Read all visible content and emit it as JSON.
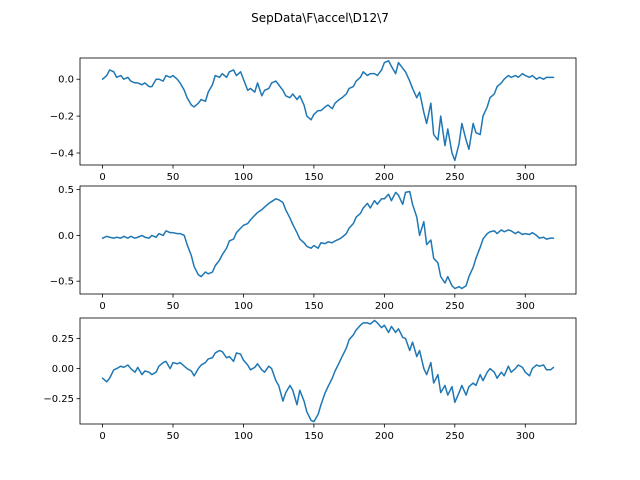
{
  "figure": {
    "title": "SepData\\F\\accel\\D12\\7"
  },
  "chart_data": [
    {
      "type": "line",
      "title": "",
      "xlabel": "",
      "ylabel": "",
      "xlim": [
        -16,
        336
      ],
      "ylim": [
        -0.465,
        0.115
      ],
      "xticks": [
        0,
        50,
        100,
        150,
        200,
        250,
        300
      ],
      "yticks": [
        -0.4,
        -0.2,
        0.0
      ],
      "ytick_labels": [
        "−0.4",
        "−0.2",
        "0.0"
      ],
      "grid": false,
      "color": "#1f77b4",
      "series": [
        {
          "x": [
            0,
            3,
            5,
            8,
            10,
            13,
            15,
            18,
            20,
            23,
            25,
            28,
            30,
            33,
            35,
            38,
            40,
            43,
            45,
            48,
            50,
            53,
            55,
            58,
            60,
            63,
            65,
            68,
            70,
            73,
            75,
            78,
            80,
            83,
            85,
            88,
            90,
            93,
            95,
            98,
            100,
            103,
            105,
            108,
            110,
            113,
            115,
            118,
            120,
            123,
            125,
            128,
            130,
            133,
            135,
            138,
            140,
            143,
            145,
            148,
            150,
            153,
            155,
            158,
            160,
            163,
            165,
            168,
            170,
            173,
            175,
            178,
            180,
            183,
            185,
            188,
            190,
            193,
            195,
            198,
            200,
            203,
            205,
            208,
            210,
            213,
            215,
            218,
            220,
            223,
            225,
            228,
            230,
            233,
            235,
            238,
            240,
            243,
            245,
            248,
            250,
            253,
            255,
            258,
            260,
            263,
            265,
            268,
            270,
            273,
            275,
            278,
            280,
            283,
            285,
            288,
            290,
            293,
            295,
            298,
            300,
            303,
            305,
            308,
            310,
            313,
            315,
            318,
            320
          ],
          "y": [
            0.0,
            0.02,
            0.05,
            0.04,
            0.01,
            0.02,
            0.0,
            0.01,
            -0.01,
            -0.02,
            -0.02,
            -0.03,
            -0.02,
            -0.04,
            -0.04,
            0.0,
            0.0,
            -0.01,
            0.02,
            0.01,
            0.02,
            0.0,
            -0.02,
            -0.06,
            -0.1,
            -0.14,
            -0.15,
            -0.13,
            -0.11,
            -0.12,
            -0.07,
            -0.03,
            0.02,
            0.01,
            0.03,
            0.01,
            0.04,
            0.05,
            0.02,
            0.04,
            0.0,
            -0.06,
            -0.05,
            -0.07,
            -0.02,
            -0.09,
            -0.06,
            -0.05,
            -0.02,
            -0.01,
            -0.03,
            -0.06,
            -0.09,
            -0.1,
            -0.08,
            -0.11,
            -0.09,
            -0.14,
            -0.2,
            -0.22,
            -0.19,
            -0.17,
            -0.17,
            -0.15,
            -0.14,
            -0.16,
            -0.13,
            -0.11,
            -0.1,
            -0.08,
            -0.05,
            -0.04,
            -0.01,
            0.01,
            0.04,
            0.02,
            0.03,
            0.03,
            0.02,
            0.05,
            0.09,
            0.1,
            0.07,
            0.03,
            0.09,
            0.06,
            0.04,
            -0.01,
            -0.05,
            -0.1,
            -0.07,
            -0.18,
            -0.24,
            -0.13,
            -0.3,
            -0.33,
            -0.2,
            -0.36,
            -0.27,
            -0.4,
            -0.44,
            -0.35,
            -0.24,
            -0.33,
            -0.38,
            -0.24,
            -0.29,
            -0.3,
            -0.2,
            -0.15,
            -0.1,
            -0.08,
            -0.04,
            -0.02,
            0.0,
            0.02,
            0.01,
            0.02,
            0.01,
            0.03,
            0.02,
            0.01,
            0.02,
            0.0,
            0.01,
            0.0,
            0.01,
            0.01,
            0.01
          ]
        }
      ]
    },
    {
      "type": "line",
      "title": "",
      "xlabel": "",
      "ylabel": "",
      "xlim": [
        -16,
        336
      ],
      "ylim": [
        -0.64,
        0.54
      ],
      "xticks": [
        0,
        50,
        100,
        150,
        200,
        250,
        300
      ],
      "yticks": [
        -0.5,
        0.0,
        0.5
      ],
      "ytick_labels": [
        "−0.5",
        "0.0",
        "0.5"
      ],
      "grid": false,
      "color": "#1f77b4",
      "series": [
        {
          "x": [
            0,
            3,
            5,
            8,
            10,
            13,
            15,
            18,
            20,
            23,
            25,
            28,
            30,
            33,
            35,
            38,
            40,
            43,
            45,
            48,
            50,
            53,
            55,
            58,
            60,
            63,
            65,
            68,
            70,
            73,
            75,
            78,
            80,
            83,
            85,
            88,
            90,
            93,
            95,
            98,
            100,
            103,
            105,
            108,
            110,
            113,
            115,
            118,
            120,
            123,
            125,
            128,
            130,
            133,
            135,
            138,
            140,
            143,
            145,
            148,
            150,
            153,
            155,
            158,
            160,
            163,
            165,
            168,
            170,
            173,
            175,
            178,
            180,
            183,
            185,
            188,
            190,
            193,
            195,
            198,
            200,
            203,
            205,
            208,
            210,
            213,
            215,
            218,
            220,
            223,
            225,
            228,
            230,
            233,
            235,
            238,
            240,
            243,
            245,
            248,
            250,
            253,
            255,
            258,
            260,
            263,
            265,
            268,
            270,
            273,
            275,
            278,
            280,
            283,
            285,
            288,
            290,
            293,
            295,
            298,
            300,
            303,
            305,
            308,
            310,
            313,
            315,
            318,
            320
          ],
          "y": [
            -0.03,
            -0.01,
            -0.02,
            -0.03,
            -0.02,
            -0.03,
            -0.01,
            -0.03,
            -0.01,
            -0.03,
            -0.02,
            0.0,
            -0.02,
            -0.03,
            0.0,
            -0.02,
            0.02,
            0.0,
            0.05,
            0.03,
            0.03,
            0.02,
            0.02,
            0.0,
            -0.1,
            -0.22,
            -0.34,
            -0.43,
            -0.45,
            -0.4,
            -0.42,
            -0.4,
            -0.33,
            -0.27,
            -0.21,
            -0.14,
            -0.06,
            -0.04,
            0.03,
            0.08,
            0.11,
            0.13,
            0.17,
            0.22,
            0.25,
            0.28,
            0.31,
            0.35,
            0.37,
            0.4,
            0.39,
            0.36,
            0.28,
            0.19,
            0.12,
            0.03,
            -0.04,
            -0.08,
            -0.12,
            -0.14,
            -0.11,
            -0.14,
            -0.08,
            -0.09,
            -0.07,
            -0.08,
            -0.06,
            -0.04,
            -0.02,
            0.02,
            0.08,
            0.13,
            0.2,
            0.24,
            0.3,
            0.35,
            0.3,
            0.38,
            0.34,
            0.4,
            0.4,
            0.45,
            0.38,
            0.47,
            0.44,
            0.34,
            0.47,
            0.48,
            0.34,
            0.2,
            0.0,
            0.15,
            -0.1,
            -0.05,
            -0.25,
            -0.3,
            -0.45,
            -0.52,
            -0.45,
            -0.55,
            -0.58,
            -0.56,
            -0.58,
            -0.55,
            -0.45,
            -0.35,
            -0.25,
            -0.13,
            -0.04,
            0.02,
            0.04,
            0.05,
            0.02,
            0.06,
            0.04,
            0.06,
            0.05,
            0.02,
            0.04,
            0.01,
            0.02,
            0.01,
            0.03,
            0.0,
            -0.03,
            -0.02,
            -0.04,
            -0.03,
            -0.03
          ]
        }
      ]
    },
    {
      "type": "line",
      "title": "",
      "xlabel": "",
      "ylabel": "",
      "xlim": [
        -16,
        336
      ],
      "ylim": [
        -0.46,
        0.42
      ],
      "xticks": [
        0,
        50,
        100,
        150,
        200,
        250,
        300
      ],
      "yticks": [
        -0.25,
        0.0,
        0.25
      ],
      "ytick_labels": [
        "−0.25",
        "0.00",
        "0.25"
      ],
      "grid": false,
      "color": "#1f77b4",
      "series": [
        {
          "x": [
            0,
            3,
            5,
            8,
            10,
            13,
            15,
            18,
            20,
            23,
            25,
            28,
            30,
            33,
            35,
            38,
            40,
            43,
            45,
            48,
            50,
            53,
            55,
            58,
            60,
            63,
            65,
            68,
            70,
            73,
            75,
            78,
            80,
            83,
            85,
            88,
            90,
            93,
            95,
            98,
            100,
            103,
            105,
            108,
            110,
            113,
            115,
            118,
            120,
            123,
            125,
            128,
            130,
            133,
            135,
            138,
            140,
            143,
            145,
            148,
            150,
            153,
            155,
            158,
            160,
            163,
            165,
            168,
            170,
            173,
            175,
            178,
            180,
            183,
            185,
            188,
            190,
            193,
            195,
            198,
            200,
            203,
            205,
            208,
            210,
            213,
            215,
            218,
            220,
            223,
            225,
            228,
            230,
            233,
            235,
            238,
            240,
            243,
            245,
            248,
            250,
            253,
            255,
            258,
            260,
            263,
            265,
            268,
            270,
            273,
            275,
            278,
            280,
            283,
            285,
            288,
            290,
            293,
            295,
            298,
            300,
            303,
            305,
            308,
            310,
            313,
            315,
            318,
            320
          ],
          "y": [
            -0.08,
            -0.11,
            -0.08,
            -0.01,
            0.0,
            0.02,
            0.01,
            0.03,
            0.0,
            -0.03,
            0.01,
            -0.05,
            -0.02,
            -0.03,
            -0.05,
            -0.03,
            0.02,
            0.05,
            0.06,
            0.0,
            0.05,
            0.04,
            0.05,
            0.02,
            0.0,
            -0.02,
            -0.06,
            0.0,
            0.03,
            0.05,
            0.08,
            0.09,
            0.13,
            0.15,
            0.14,
            0.09,
            0.1,
            0.06,
            0.13,
            0.12,
            0.07,
            0.03,
            -0.01,
            0.01,
            0.04,
            -0.01,
            -0.03,
            0.02,
            0.0,
            -0.1,
            -0.14,
            -0.27,
            -0.2,
            -0.14,
            -0.18,
            -0.3,
            -0.18,
            -0.27,
            -0.36,
            -0.43,
            -0.44,
            -0.38,
            -0.3,
            -0.2,
            -0.15,
            -0.08,
            -0.02,
            0.05,
            0.1,
            0.17,
            0.24,
            0.28,
            0.32,
            0.36,
            0.38,
            0.38,
            0.37,
            0.4,
            0.38,
            0.34,
            0.36,
            0.3,
            0.35,
            0.3,
            0.33,
            0.26,
            0.25,
            0.15,
            0.22,
            0.1,
            0.15,
            0.0,
            -0.05,
            0.05,
            -0.12,
            -0.05,
            -0.2,
            -0.14,
            -0.22,
            -0.15,
            -0.28,
            -0.2,
            -0.14,
            -0.22,
            -0.15,
            -0.12,
            -0.14,
            -0.05,
            -0.1,
            -0.03,
            0.0,
            -0.03,
            -0.08,
            -0.03,
            -0.06,
            0.02,
            -0.03,
            0.0,
            0.03,
            0.01,
            -0.03,
            -0.06,
            0.0,
            0.03,
            0.02,
            0.03,
            -0.01,
            -0.01,
            0.01
          ]
        }
      ]
    }
  ]
}
